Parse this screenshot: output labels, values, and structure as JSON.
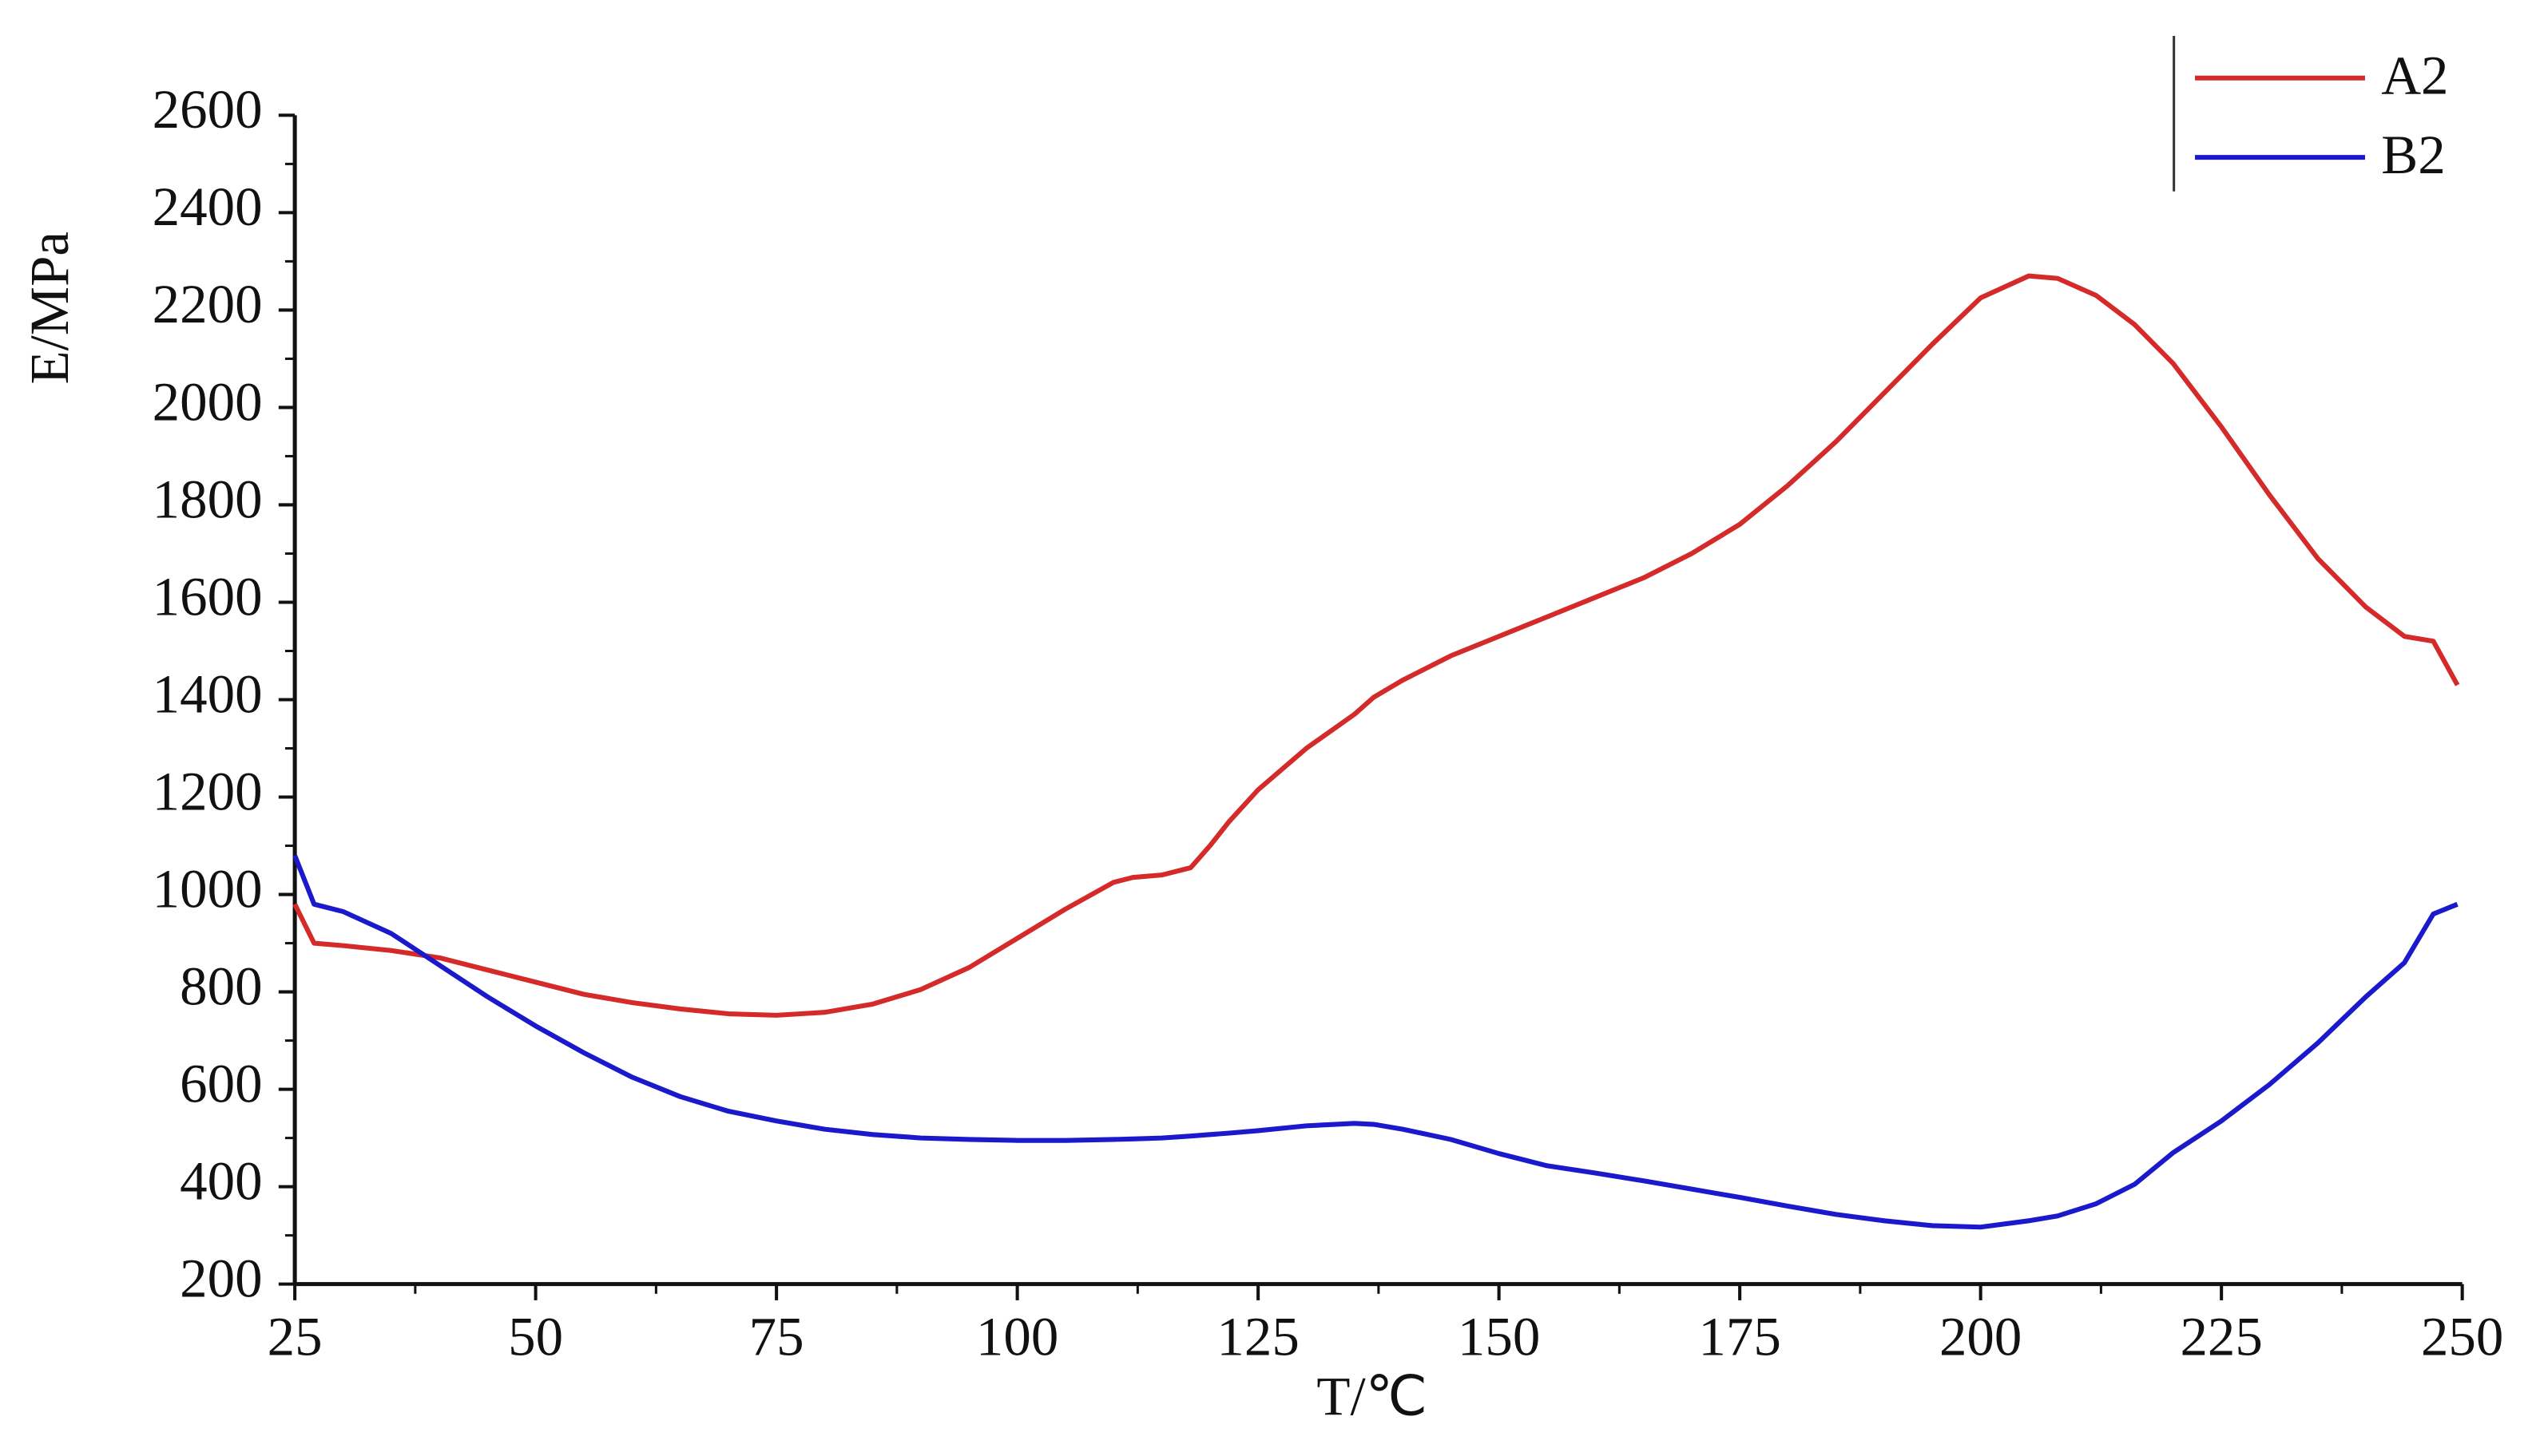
{
  "chart_data": {
    "type": "line",
    "x_label": "T/℃",
    "y_label": "E/MPa",
    "xlim": [
      25,
      250
    ],
    "ylim": [
      200,
      2600
    ],
    "xticks": [
      25,
      50,
      75,
      100,
      125,
      150,
      175,
      200,
      225,
      250
    ],
    "yticks": [
      200,
      400,
      600,
      800,
      1000,
      1200,
      1400,
      1600,
      1800,
      2000,
      2200,
      2400,
      2600
    ],
    "legend": "upper right",
    "x": [
      25,
      27,
      30,
      35,
      40,
      45,
      50,
      55,
      60,
      65,
      70,
      75,
      80,
      85,
      90,
      95,
      100,
      105,
      110,
      112,
      115,
      118,
      120,
      122,
      125,
      130,
      135,
      137,
      140,
      145,
      150,
      155,
      160,
      165,
      170,
      175,
      180,
      185,
      190,
      195,
      200,
      205,
      208,
      212,
      216,
      220,
      225,
      230,
      235,
      240,
      244,
      247,
      249.5
    ],
    "series": [
      {
        "name": "A2",
        "color": "#d42a2a",
        "values": [
          980,
          900,
          895,
          885,
          870,
          845,
          820,
          795,
          778,
          765,
          755,
          752,
          758,
          775,
          805,
          850,
          910,
          970,
          1025,
          1035,
          1040,
          1055,
          1100,
          1150,
          1215,
          1300,
          1370,
          1405,
          1440,
          1490,
          1530,
          1570,
          1610,
          1650,
          1700,
          1760,
          1840,
          1930,
          2030,
          2130,
          2225,
          2270,
          2265,
          2230,
          2170,
          2090,
          1960,
          1820,
          1690,
          1590,
          1530,
          1520,
          1430
        ]
      },
      {
        "name": "B2",
        "color": "#1a1acc",
        "values": [
          1080,
          980,
          965,
          920,
          855,
          790,
          730,
          675,
          625,
          585,
          555,
          535,
          518,
          507,
          500,
          497,
          495,
          495,
          497,
          498,
          500,
          504,
          507,
          510,
          515,
          525,
          530,
          528,
          518,
          497,
          468,
          443,
          428,
          412,
          395,
          378,
          360,
          343,
          330,
          320,
          317,
          330,
          340,
          365,
          405,
          470,
          535,
          610,
          695,
          790,
          860,
          960,
          980
        ]
      }
    ]
  }
}
